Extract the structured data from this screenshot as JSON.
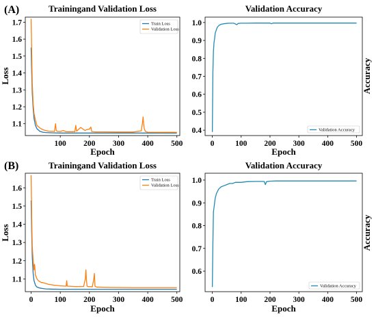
{
  "colors": {
    "train": "#1f77b4",
    "validation": "#ff7f0e",
    "accuracy": "#1f8bb4"
  },
  "panels": [
    {
      "label": "(A)"
    },
    {
      "label": "(B)"
    }
  ],
  "chart_data": [
    {
      "panel": "(A)",
      "type": "line",
      "title": "Trainingand Validation Loss",
      "xlabel": "Epoch",
      "ylabel": "Loss",
      "xlim": [
        -20,
        510
      ],
      "ylim": [
        1.03,
        1.73
      ],
      "xticks": [
        "100",
        "200",
        "300",
        "400",
        "500"
      ],
      "yticks": [
        "1.1",
        "1.2",
        "1.3",
        "1.4",
        "1.5",
        "1.6",
        "1.7"
      ],
      "legend_position": "top-right",
      "series": [
        {
          "name": "Train Loss",
          "color_key": "train",
          "x": [
            0,
            2,
            4,
            7,
            10,
            15,
            20,
            30,
            40,
            50,
            70,
            100,
            150,
            200,
            300,
            400,
            500
          ],
          "y": [
            1.55,
            1.4,
            1.28,
            1.19,
            1.13,
            1.09,
            1.07,
            1.055,
            1.05,
            1.048,
            1.046,
            1.045,
            1.045,
            1.045,
            1.045,
            1.045,
            1.045
          ]
        },
        {
          "name": "Validation Loss",
          "color_key": "validation",
          "x": [
            0,
            1,
            2,
            4,
            7,
            10,
            15,
            20,
            30,
            40,
            50,
            60,
            70,
            80,
            84,
            86,
            90,
            100,
            110,
            120,
            150,
            153,
            156,
            170,
            185,
            190,
            200,
            205,
            208,
            220,
            250,
            300,
            350,
            378,
            382,
            384,
            386,
            388,
            392,
            400,
            450,
            500
          ],
          "y": [
            1.72,
            1.62,
            1.5,
            1.34,
            1.22,
            1.16,
            1.12,
            1.09,
            1.075,
            1.065,
            1.06,
            1.056,
            1.055,
            1.054,
            1.1,
            1.06,
            1.055,
            1.054,
            1.06,
            1.053,
            1.053,
            1.09,
            1.056,
            1.078,
            1.06,
            1.065,
            1.068,
            1.08,
            1.054,
            1.052,
            1.052,
            1.051,
            1.051,
            1.058,
            1.105,
            1.14,
            1.1,
            1.07,
            1.055,
            1.05,
            1.049,
            1.049
          ]
        }
      ]
    },
    {
      "panel": "(A)",
      "type": "line",
      "title": "Validation Accuracy",
      "xlabel": "Epoch",
      "ylabel": "Accuracy",
      "xlim": [
        -25,
        520
      ],
      "ylim": [
        0.37,
        1.03
      ],
      "xticks": [
        "0",
        "100",
        "200",
        "300",
        "400",
        "500"
      ],
      "yticks": [
        "0.4",
        "0.5",
        "0.6",
        "0.7",
        "0.8",
        "0.9",
        "1.0"
      ],
      "legend_position": "lower-right",
      "series": [
        {
          "name": "Validation Accuracy",
          "color_key": "accuracy",
          "x": [
            0,
            2,
            4,
            6,
            8,
            10,
            14,
            18,
            24,
            30,
            40,
            50,
            60,
            75,
            85,
            90,
            100,
            120,
            150,
            200,
            205,
            210,
            250,
            300,
            350,
            400,
            450,
            500
          ],
          "y": [
            0.39,
            0.72,
            0.84,
            0.89,
            0.91,
            0.94,
            0.96,
            0.975,
            0.985,
            0.99,
            0.993,
            0.995,
            0.996,
            0.996,
            0.988,
            0.995,
            0.996,
            0.996,
            0.997,
            0.997,
            0.993,
            0.997,
            0.997,
            0.997,
            0.997,
            0.997,
            0.997,
            0.997
          ]
        }
      ]
    },
    {
      "panel": "(B)",
      "type": "line",
      "title": "Trainingand Validation Loss",
      "xlabel": "Epoch",
      "ylabel": "Loss",
      "xlim": [
        -20,
        510
      ],
      "ylim": [
        1.03,
        1.68
      ],
      "xticks": [
        "0",
        "100",
        "200",
        "300",
        "400",
        "500"
      ],
      "yticks": [
        "1.1",
        "1.2",
        "1.3",
        "1.4",
        "1.5",
        "1.6"
      ],
      "legend_position": "top-right",
      "series": [
        {
          "name": "Train Loss",
          "color_key": "train",
          "x": [
            0,
            2,
            4,
            7,
            10,
            15,
            20,
            30,
            40,
            50,
            70,
            100,
            150,
            200,
            300,
            400,
            500
          ],
          "y": [
            1.53,
            1.35,
            1.22,
            1.13,
            1.09,
            1.065,
            1.055,
            1.05,
            1.047,
            1.045,
            1.044,
            1.043,
            1.043,
            1.043,
            1.043,
            1.043,
            1.043
          ]
        },
        {
          "name": "Validation Loss",
          "color_key": "validation",
          "x": [
            0,
            1,
            2,
            4,
            7,
            10,
            12,
            15,
            20,
            25,
            30,
            35,
            40,
            50,
            60,
            70,
            80,
            90,
            100,
            120,
            122,
            124,
            150,
            180,
            186,
            188,
            190,
            192,
            195,
            210,
            215,
            217,
            219,
            225,
            250,
            300,
            350,
            400,
            450,
            500
          ],
          "y": [
            1.67,
            1.55,
            1.42,
            1.28,
            1.2,
            1.15,
            1.18,
            1.12,
            1.1,
            1.09,
            1.085,
            1.08,
            1.08,
            1.075,
            1.07,
            1.068,
            1.065,
            1.064,
            1.062,
            1.06,
            1.09,
            1.06,
            1.058,
            1.058,
            1.1,
            1.15,
            1.09,
            1.06,
            1.058,
            1.057,
            1.1,
            1.13,
            1.06,
            1.055,
            1.054,
            1.053,
            1.052,
            1.052,
            1.052,
            1.052
          ]
        }
      ]
    },
    {
      "panel": "(B)",
      "type": "line",
      "title": "Validation Accuracy",
      "xlabel": "Epoch",
      "ylabel": "Accuracy",
      "xlim": [
        -25,
        520
      ],
      "ylim": [
        0.51,
        1.03
      ],
      "xticks": [
        "0",
        "100",
        "200",
        "300",
        "400",
        "500"
      ],
      "yticks": [
        "0.6",
        "0.7",
        "0.8",
        "0.9",
        "1.0"
      ],
      "legend_position": "lower-right",
      "series": [
        {
          "name": "Validation Accuracy",
          "color_key": "accuracy",
          "x": [
            0,
            2,
            4,
            6,
            8,
            10,
            14,
            18,
            22,
            26,
            30,
            40,
            50,
            60,
            70,
            80,
            100,
            120,
            150,
            180,
            184,
            188,
            200,
            220,
            250,
            300,
            350,
            400,
            450,
            500
          ],
          "y": [
            0.53,
            0.72,
            0.86,
            0.88,
            0.9,
            0.92,
            0.94,
            0.95,
            0.96,
            0.965,
            0.97,
            0.975,
            0.98,
            0.985,
            0.985,
            0.99,
            0.99,
            0.993,
            0.994,
            0.994,
            0.98,
            0.993,
            0.995,
            0.996,
            0.996,
            0.996,
            0.996,
            0.996,
            0.996,
            0.996
          ]
        }
      ]
    }
  ]
}
